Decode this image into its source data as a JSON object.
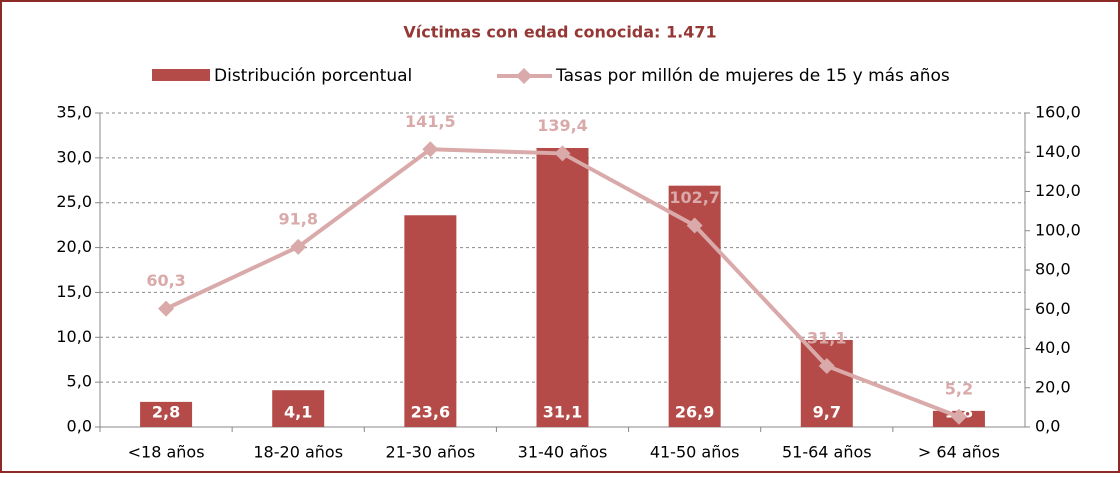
{
  "chart_data": {
    "type": "bar",
    "title": "Víctimas con edad conocida:  1.471",
    "categories": [
      "<18 años",
      "18-20 años",
      "21-30 años",
      "31-40 años",
      "41-50 años",
      "51-64 años",
      "> 64 años"
    ],
    "series": [
      {
        "name": "Distribución porcentual",
        "color": "#b44b48",
        "values": [
          2.8,
          4.1,
          23.6,
          31.1,
          26.9,
          9.7,
          1.8
        ],
        "value_labels": [
          "2,8",
          "4,1",
          "23,6",
          "31,1",
          "26,9",
          "9,7",
          "1,8"
        ]
      },
      {
        "name": "Tasas por millón de mujeres de 15 y más años",
        "type": "line",
        "axis": "y2",
        "color": "#d9aaa9",
        "values": [
          60.3,
          91.8,
          141.5,
          139.4,
          102.7,
          31.1,
          5.2
        ],
        "value_labels": [
          "60,3",
          "91,8",
          "141,5",
          "139,4",
          "102,7",
          "31,1",
          "5,2"
        ]
      }
    ],
    "ylim": [
      0,
      35
    ],
    "yticks": [
      {
        "value": 0,
        "label": "0,0"
      },
      {
        "value": 5,
        "label": "5,0"
      },
      {
        "value": 10,
        "label": "10,0"
      },
      {
        "value": 15,
        "label": "15,0"
      },
      {
        "value": 20,
        "label": "20,0"
      },
      {
        "value": 25,
        "label": "25,0"
      },
      {
        "value": 30,
        "label": "30,0"
      },
      {
        "value": 35,
        "label": "35,0"
      }
    ],
    "y2lim": [
      0,
      160
    ],
    "y2ticks": [
      {
        "value": 0,
        "label": "0,0"
      },
      {
        "value": 20,
        "label": "20,0"
      },
      {
        "value": 40,
        "label": "40,0"
      },
      {
        "value": 60,
        "label": "60,0"
      },
      {
        "value": 80,
        "label": "80,0"
      },
      {
        "value": 100,
        "label": "100,0"
      },
      {
        "value": 120,
        "label": "120,0"
      },
      {
        "value": 140,
        "label": "140,0"
      },
      {
        "value": 160,
        "label": "160,0"
      }
    ],
    "grid": true
  }
}
